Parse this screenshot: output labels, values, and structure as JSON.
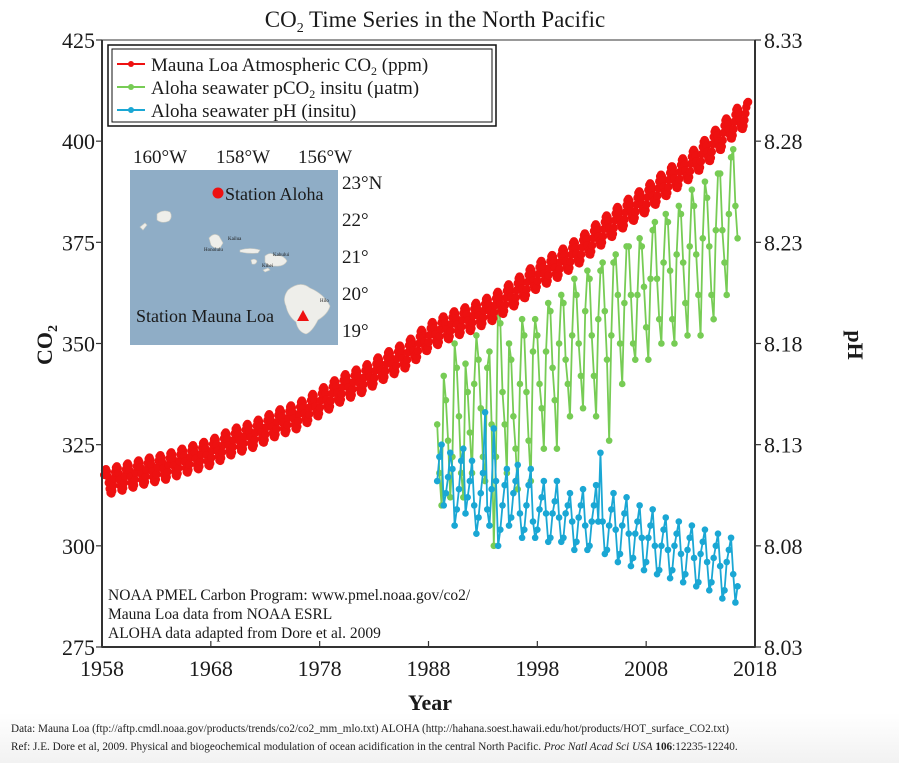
{
  "chart_data": {
    "type": "line",
    "title": "CO2 Time Series in the North Pacific",
    "title_parts": {
      "pre": "CO",
      "sub": "2",
      "post": " Time Series in the North Pacific"
    },
    "xlabel": "Year",
    "ylabel_left": {
      "pre": "CO",
      "sub": "2"
    },
    "ylabel_right": "pH",
    "xlim": [
      1958,
      2018
    ],
    "ylim_left": [
      275,
      425
    ],
    "ylim_right": [
      8.03,
      8.33
    ],
    "grid": false,
    "legend_placement": "top-left",
    "x_ticks": [
      "1958",
      "1968",
      "1978",
      "1988",
      "1998",
      "2008",
      "2018"
    ],
    "x_tick_values": [
      1958,
      1968,
      1978,
      1988,
      1998,
      2008,
      2018
    ],
    "y_left_ticks": [
      "275",
      "300",
      "325",
      "350",
      "375",
      "400",
      "425"
    ],
    "y_left_tick_values": [
      275,
      300,
      325,
      350,
      375,
      400,
      425
    ],
    "y_right_ticks": [
      "8.03",
      "8.08",
      "8.13",
      "8.18",
      "8.23",
      "8.28",
      "8.33"
    ],
    "y_right_tick_values": [
      8.03,
      8.08,
      8.13,
      8.18,
      8.23,
      8.28,
      8.33
    ],
    "series": [
      {
        "name": "Mauna Loa Atmospheric CO2 (ppm)",
        "legend": {
          "pre": "Mauna Loa Atmospheric CO",
          "sub": "2",
          "post": " (ppm)"
        },
        "color": "#ee1111",
        "axis": "left",
        "resolution": "monthly",
        "seasonal_amplitude_ppm": 3.2,
        "annual_mean_years": [
          1958,
          1960,
          1962,
          1964,
          1966,
          1968,
          1970,
          1972,
          1974,
          1976,
          1978,
          1980,
          1982,
          1984,
          1986,
          1988,
          1990,
          1992,
          1994,
          1996,
          1998,
          2000,
          2002,
          2004,
          2006,
          2008,
          2010,
          2012,
          2014,
          2016,
          2017
        ],
        "annual_mean_values": [
          315.5,
          316.9,
          318.4,
          319.6,
          321.4,
          323.0,
          325.7,
          327.5,
          330.2,
          332.1,
          335.4,
          338.8,
          341.1,
          344.4,
          347.2,
          351.6,
          354.4,
          356.4,
          358.9,
          362.6,
          366.7,
          369.6,
          373.2,
          377.7,
          381.9,
          385.6,
          389.9,
          393.8,
          398.6,
          404.2,
          406.5
        ]
      },
      {
        "name": "Aloha seawater pCO2 insitu (µatm)",
        "legend": {
          "pre": "Aloha seawater pCO",
          "sub": "2",
          "post": " insitu (µatm)"
        },
        "color": "#77cc55",
        "axis": "left",
        "x": [
          1988.8,
          1989.0,
          1989.2,
          1989.4,
          1989.6,
          1989.8,
          1990.0,
          1990.2,
          1990.4,
          1990.6,
          1990.8,
          1991.0,
          1991.2,
          1991.4,
          1991.6,
          1991.8,
          1992.0,
          1992.2,
          1992.4,
          1992.6,
          1992.8,
          1993.0,
          1993.2,
          1993.4,
          1993.6,
          1993.8,
          1994.0,
          1994.2,
          1994.4,
          1994.6,
          1994.8,
          1995.0,
          1995.2,
          1995.4,
          1995.6,
          1995.8,
          1996.0,
          1996.2,
          1996.4,
          1996.6,
          1996.8,
          1997.0,
          1997.2,
          1997.4,
          1997.6,
          1997.8,
          1998.0,
          1998.2,
          1998.4,
          1998.6,
          1998.8,
          1999.0,
          1999.2,
          1999.4,
          1999.6,
          1999.8,
          2000.0,
          2000.2,
          2000.4,
          2000.6,
          2000.8,
          2001.0,
          2001.2,
          2001.4,
          2001.6,
          2001.8,
          2002.0,
          2002.2,
          2002.4,
          2002.6,
          2002.8,
          2003.0,
          2003.2,
          2003.4,
          2003.6,
          2003.8,
          2004.0,
          2004.2,
          2004.4,
          2004.6,
          2004.8,
          2005.0,
          2005.2,
          2005.4,
          2005.6,
          2005.8,
          2006.0,
          2006.2,
          2006.4,
          2006.6,
          2006.8,
          2007.0,
          2007.2,
          2007.4,
          2007.6,
          2007.8,
          2008.0,
          2008.2,
          2008.4,
          2008.6,
          2008.8,
          2009.0,
          2009.2,
          2009.4,
          2009.6,
          2009.8,
          2010.0,
          2010.2,
          2010.4,
          2010.6,
          2010.8,
          2011.0,
          2011.2,
          2011.4,
          2011.6,
          2011.8,
          2012.0,
          2012.2,
          2012.4,
          2012.6,
          2012.8,
          2013.0,
          2013.2,
          2013.4,
          2013.6,
          2013.8,
          2014.0,
          2014.2,
          2014.4,
          2014.6,
          2014.8,
          2015.0,
          2015.2,
          2015.4,
          2015.6,
          2015.8,
          2016.0,
          2016.2,
          2016.4
        ],
        "values": [
          330,
          318,
          310,
          342,
          336,
          326,
          312,
          322,
          350,
          344,
          332,
          318,
          312,
          345,
          338,
          328,
          318,
          340,
          352,
          346,
          334,
          322,
          316,
          344,
          348,
          330,
          300,
          322,
          362,
          355,
          338,
          330,
          318,
          350,
          346,
          332,
          324,
          314,
          340,
          356,
          352,
          338,
          326,
          316,
          348,
          356,
          352,
          340,
          334,
          324,
          348,
          360,
          358,
          344,
          336,
          324,
          350,
          362,
          360,
          346,
          340,
          332,
          352,
          366,
          362,
          350,
          342,
          334,
          358,
          368,
          366,
          352,
          342,
          332,
          356,
          368,
          370,
          358,
          346,
          326,
          352,
          370,
          372,
          362,
          350,
          340,
          360,
          374,
          374,
          362,
          350,
          346,
          362,
          376,
          374,
          364,
          354,
          346,
          366,
          378,
          380,
          366,
          356,
          350,
          370,
          382,
          380,
          368,
          356,
          350,
          372,
          384,
          382,
          370,
          360,
          352,
          374,
          388,
          384,
          372,
          362,
          352,
          376,
          390,
          386,
          374,
          362,
          356,
          378,
          392,
          392,
          378,
          370,
          362,
          382,
          396,
          398,
          384,
          376
        ],
        "note": "bimonthly samples, values read approximately from chart"
      },
      {
        "name": "Aloha seawater pH (insitu)",
        "legend": {
          "pre": "Aloha seawater pH (insitu)",
          "sub": "",
          "post": ""
        },
        "color": "#1aa7d4",
        "axis": "right",
        "x": [
          1988.8,
          1989.0,
          1989.2,
          1989.4,
          1989.6,
          1989.8,
          1990.0,
          1990.2,
          1990.4,
          1990.6,
          1990.8,
          1991.0,
          1991.2,
          1991.4,
          1991.6,
          1991.8,
          1992.0,
          1992.2,
          1992.4,
          1992.6,
          1992.8,
          1993.0,
          1993.2,
          1993.4,
          1993.6,
          1993.8,
          1994.0,
          1994.2,
          1994.4,
          1994.6,
          1994.8,
          1995.0,
          1995.2,
          1995.4,
          1995.6,
          1995.8,
          1996.0,
          1996.2,
          1996.4,
          1996.6,
          1996.8,
          1997.0,
          1997.2,
          1997.4,
          1997.6,
          1997.8,
          1998.0,
          1998.2,
          1998.4,
          1998.6,
          1998.8,
          1999.0,
          1999.2,
          1999.4,
          1999.6,
          1999.8,
          2000.0,
          2000.2,
          2000.4,
          2000.6,
          2000.8,
          2001.0,
          2001.2,
          2001.4,
          2001.6,
          2001.8,
          2002.0,
          2002.2,
          2002.4,
          2002.6,
          2002.8,
          2003.0,
          2003.2,
          2003.4,
          2003.6,
          2003.8,
          2004.0,
          2004.2,
          2004.4,
          2004.6,
          2004.8,
          2005.0,
          2005.2,
          2005.4,
          2005.6,
          2005.8,
          2006.0,
          2006.2,
          2006.4,
          2006.6,
          2006.8,
          2007.0,
          2007.2,
          2007.4,
          2007.6,
          2007.8,
          2008.0,
          2008.2,
          2008.4,
          2008.6,
          2008.8,
          2009.0,
          2009.2,
          2009.4,
          2009.6,
          2009.8,
          2010.0,
          2010.2,
          2010.4,
          2010.6,
          2010.8,
          2011.0,
          2011.2,
          2011.4,
          2011.6,
          2011.8,
          2012.0,
          2012.2,
          2012.4,
          2012.6,
          2012.8,
          2013.0,
          2013.2,
          2013.4,
          2013.6,
          2013.8,
          2014.0,
          2014.2,
          2014.4,
          2014.6,
          2014.8,
          2015.0,
          2015.2,
          2015.4,
          2015.6,
          2015.8,
          2016.0,
          2016.2,
          2016.4
        ],
        "values": [
          8.112,
          8.124,
          8.13,
          8.1,
          8.106,
          8.114,
          8.126,
          8.118,
          8.09,
          8.098,
          8.108,
          8.122,
          8.128,
          8.096,
          8.104,
          8.112,
          8.122,
          8.1,
          8.086,
          8.094,
          8.106,
          8.116,
          8.146,
          8.098,
          8.09,
          8.108,
          8.138,
          8.112,
          8.08,
          8.088,
          8.1,
          8.11,
          8.118,
          8.09,
          8.094,
          8.106,
          8.112,
          8.12,
          8.096,
          8.084,
          8.088,
          8.1,
          8.11,
          8.118,
          8.092,
          8.084,
          8.088,
          8.098,
          8.104,
          8.112,
          8.096,
          8.082,
          8.084,
          8.096,
          8.102,
          8.112,
          8.094,
          8.082,
          8.084,
          8.096,
          8.1,
          8.106,
          8.092,
          8.078,
          8.082,
          8.094,
          8.1,
          8.108,
          8.09,
          8.078,
          8.08,
          8.092,
          8.1,
          8.11,
          8.092,
          8.126,
          8.092,
          8.076,
          8.078,
          8.09,
          8.098,
          8.106,
          8.088,
          8.072,
          8.076,
          8.09,
          8.096,
          8.104,
          8.086,
          8.07,
          8.074,
          8.086,
          8.092,
          8.1,
          8.084,
          8.068,
          8.072,
          8.084,
          8.09,
          8.098,
          8.08,
          8.066,
          8.068,
          8.08,
          8.088,
          8.094,
          8.078,
          8.064,
          8.068,
          8.08,
          8.086,
          8.092,
          8.076,
          8.062,
          8.066,
          8.078,
          8.084,
          8.09,
          8.074,
          8.06,
          8.062,
          8.076,
          8.082,
          8.088,
          8.072,
          8.058,
          8.062,
          8.074,
          8.08,
          8.086,
          8.07,
          8.054,
          8.058,
          8.072,
          8.078,
          8.084,
          8.066,
          8.052,
          8.06
        ]
      }
    ],
    "annotations": [
      "NOAA PMEL Carbon Program: www.pmel.noaa.gov/co2/",
      "Mauna Loa data from NOAA ESRL",
      "ALOHA data adapted from Dore et al. 2009"
    ],
    "inset_map": {
      "lon_labels": [
        "160°W",
        "158°W",
        "156°W"
      ],
      "lat_labels": [
        "23°N",
        "22°",
        "21°",
        "20°",
        "19°"
      ],
      "stations": [
        {
          "name": "Station Aloha",
          "marker": "circle",
          "color": "#ee1111"
        },
        {
          "name": "Station Mauna Loa",
          "marker": "triangle",
          "color": "#ee1111"
        }
      ],
      "place_labels": [
        "Kailua",
        "Honolulu",
        "Kahului",
        "Kihei",
        "Hilo"
      ],
      "water_color": "#8fadc6",
      "land_color": "#eeeeea"
    }
  },
  "footer": {
    "line1": "Data: Mauna Loa (ftp://aftp.cmdl.noaa.gov/products/trends/co2/co2_mm_mlo.txt)  ALOHA (http://hahana.soest.hawaii.edu/hot/products/HOT_surface_CO2.txt)",
    "line2_pre": "Ref: J.E. Dore et al, 2009. Physical and biogeochemical modulation of ocean acidification in the central North Pacific. ",
    "line2_journal": "Proc Natl Acad Sci USA",
    "line2_volume": "106",
    "line2_pages": ":12235-12240."
  }
}
